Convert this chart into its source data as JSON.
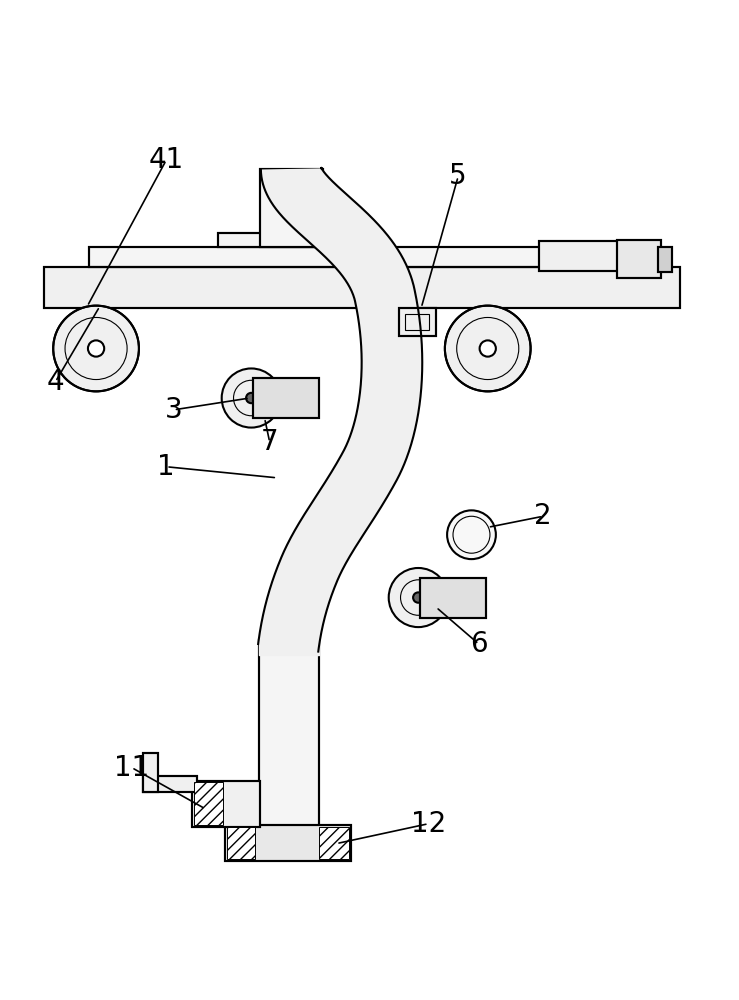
{
  "bg_color": "#ffffff",
  "line_color": "#000000",
  "label_color": "#000000",
  "line_width": 1.5,
  "thin_line": 0.8,
  "font_size": 20
}
